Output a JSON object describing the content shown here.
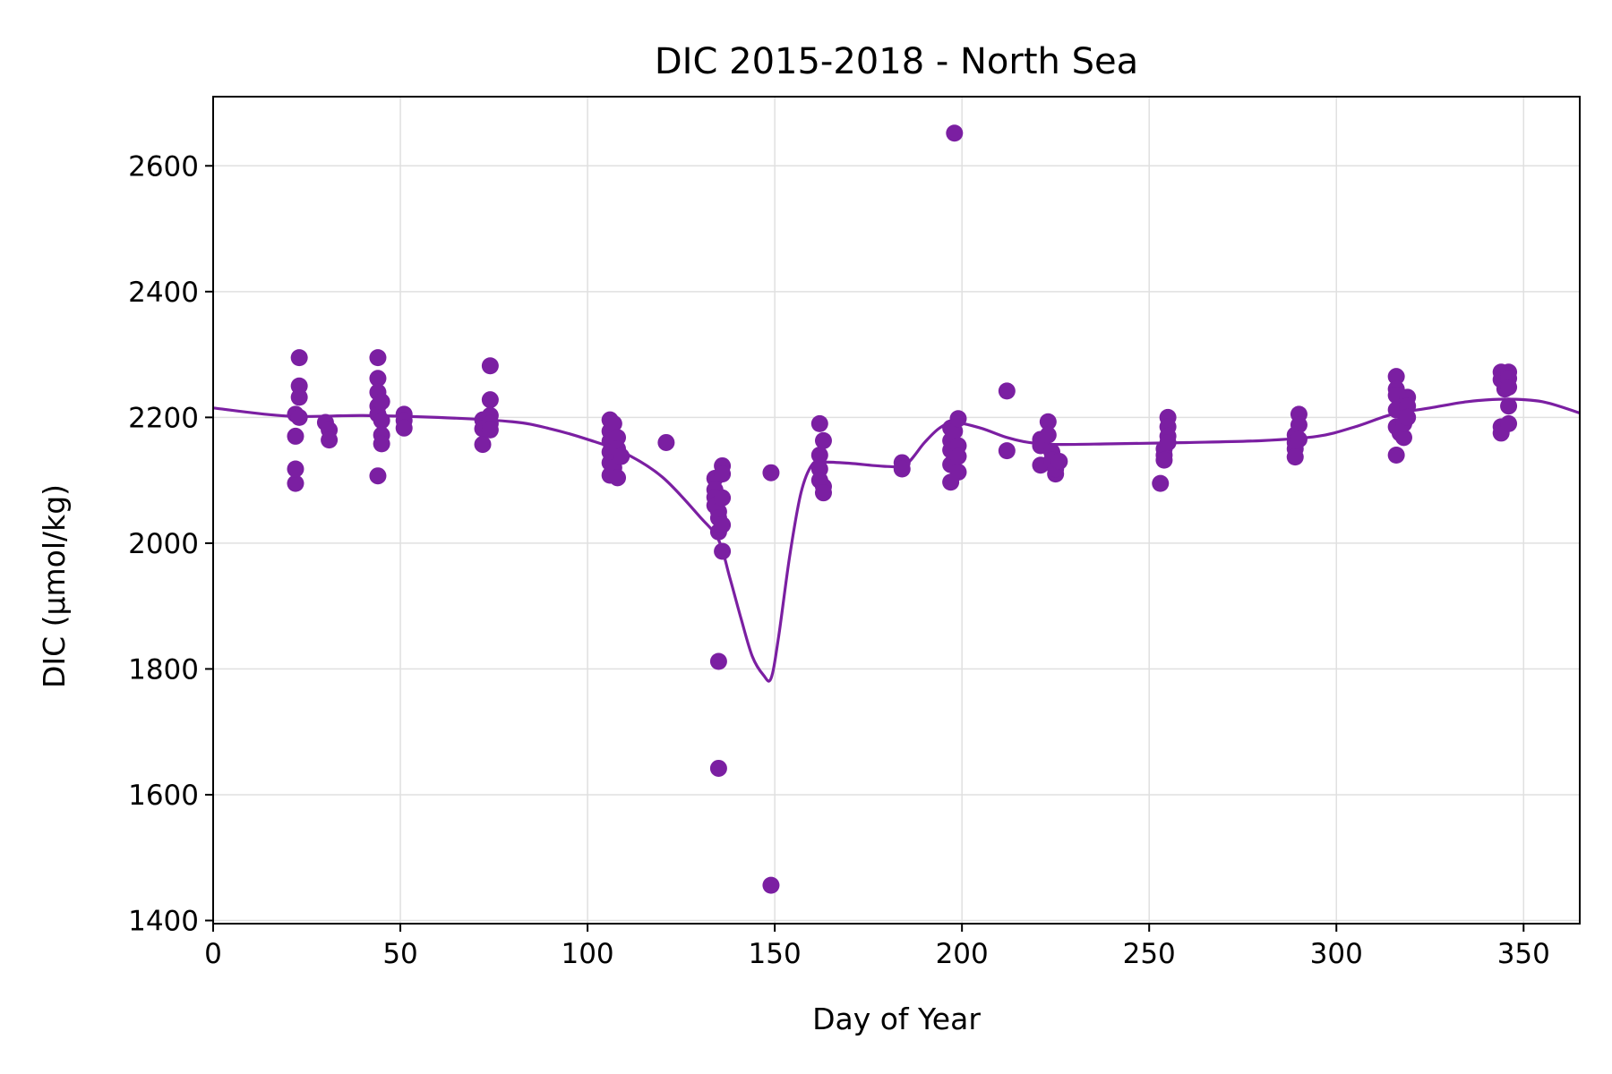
{
  "chart_data": {
    "type": "scatter",
    "title": "DIC 2015-2018 - North Sea",
    "xlabel": "Day of Year",
    "ylabel": "DIC (µmol/kg)",
    "xlim": [
      0,
      365
    ],
    "ylim": [
      1395,
      2710
    ],
    "xticks": [
      0,
      50,
      100,
      150,
      200,
      250,
      300,
      350
    ],
    "yticks": [
      1400,
      1600,
      1800,
      2000,
      2200,
      2400,
      2600
    ],
    "grid": true,
    "legend": "none",
    "colors": {
      "series": "#7b1fa2",
      "grid": "#e0e0e0",
      "axis": "#000000"
    },
    "series": [
      {
        "kind": "points",
        "points": [
          [
            22,
            2095
          ],
          [
            22,
            2118
          ],
          [
            22,
            2170
          ],
          [
            22,
            2205
          ],
          [
            23,
            2295
          ],
          [
            23,
            2250
          ],
          [
            23,
            2232
          ],
          [
            23,
            2200
          ],
          [
            30,
            2192
          ],
          [
            31,
            2180
          ],
          [
            31,
            2164
          ],
          [
            44,
            2295
          ],
          [
            44,
            2262
          ],
          [
            44,
            2240
          ],
          [
            44,
            2218
          ],
          [
            44,
            2205
          ],
          [
            44,
            2107
          ],
          [
            45,
            2195
          ],
          [
            45,
            2172
          ],
          [
            45,
            2158
          ],
          [
            45,
            2225
          ],
          [
            51,
            2205
          ],
          [
            51,
            2195
          ],
          [
            51,
            2183
          ],
          [
            72,
            2196
          ],
          [
            72,
            2182
          ],
          [
            72,
            2157
          ],
          [
            74,
            2282
          ],
          [
            74,
            2228
          ],
          [
            74,
            2203
          ],
          [
            74,
            2190
          ],
          [
            74,
            2180
          ],
          [
            106,
            2196
          ],
          [
            106,
            2178
          ],
          [
            106,
            2162
          ],
          [
            106,
            2145
          ],
          [
            106,
            2128
          ],
          [
            106,
            2108
          ],
          [
            107,
            2190
          ],
          [
            107,
            2120
          ],
          [
            108,
            2168
          ],
          [
            108,
            2150
          ],
          [
            108,
            2104
          ],
          [
            109,
            2138
          ],
          [
            121,
            2160
          ],
          [
            134,
            2103
          ],
          [
            134,
            2085
          ],
          [
            134,
            2073
          ],
          [
            134,
            2060
          ],
          [
            135,
            2050
          ],
          [
            135,
            2040
          ],
          [
            135,
            2018
          ],
          [
            135,
            1812
          ],
          [
            135,
            1642
          ],
          [
            136,
            2123
          ],
          [
            136,
            2110
          ],
          [
            136,
            2072
          ],
          [
            136,
            2029
          ],
          [
            136,
            1987
          ],
          [
            149,
            2112
          ],
          [
            149,
            1456
          ],
          [
            162,
            2190
          ],
          [
            162,
            2140
          ],
          [
            162,
            2118
          ],
          [
            162,
            2100
          ],
          [
            163,
            2163
          ],
          [
            163,
            2090
          ],
          [
            163,
            2080
          ],
          [
            184,
            2128
          ],
          [
            184,
            2118
          ],
          [
            197,
            2183
          ],
          [
            197,
            2163
          ],
          [
            197,
            2148
          ],
          [
            197,
            2125
          ],
          [
            197,
            2097
          ],
          [
            198,
            2652
          ],
          [
            198,
            2178
          ],
          [
            199,
            2198
          ],
          [
            199,
            2155
          ],
          [
            199,
            2138
          ],
          [
            199,
            2113
          ],
          [
            212,
            2242
          ],
          [
            212,
            2147
          ],
          [
            221,
            2165
          ],
          [
            221,
            2155
          ],
          [
            221,
            2124
          ],
          [
            223,
            2193
          ],
          [
            223,
            2172
          ],
          [
            224,
            2145
          ],
          [
            224,
            2132
          ],
          [
            225,
            2110
          ],
          [
            225,
            2118
          ],
          [
            226,
            2130
          ],
          [
            253,
            2095
          ],
          [
            254,
            2150
          ],
          [
            254,
            2140
          ],
          [
            254,
            2132
          ],
          [
            255,
            2200
          ],
          [
            255,
            2185
          ],
          [
            255,
            2170
          ],
          [
            255,
            2160
          ],
          [
            289,
            2172
          ],
          [
            289,
            2160
          ],
          [
            289,
            2150
          ],
          [
            289,
            2137
          ],
          [
            290,
            2205
          ],
          [
            290,
            2188
          ],
          [
            290,
            2165
          ],
          [
            316,
            2265
          ],
          [
            316,
            2245
          ],
          [
            316,
            2235
          ],
          [
            316,
            2212
          ],
          [
            316,
            2185
          ],
          [
            316,
            2140
          ],
          [
            317,
            2175
          ],
          [
            318,
            2168
          ],
          [
            318,
            2190
          ],
          [
            319,
            2232
          ],
          [
            319,
            2218
          ],
          [
            319,
            2200
          ],
          [
            344,
            2272
          ],
          [
            344,
            2260
          ],
          [
            344,
            2185
          ],
          [
            344,
            2175
          ],
          [
            345,
            2255
          ],
          [
            345,
            2245
          ],
          [
            346,
            2272
          ],
          [
            346,
            2262
          ],
          [
            346,
            2248
          ],
          [
            346,
            2218
          ],
          [
            346,
            2190
          ]
        ]
      },
      {
        "kind": "fitted_line",
        "x": [
          0,
          20,
          40,
          60,
          80,
          90,
          100,
          110,
          120,
          130,
          135,
          138,
          141,
          144,
          147,
          149,
          151,
          154,
          157,
          160,
          163,
          170,
          180,
          185,
          190,
          194,
          198,
          205,
          212,
          218,
          225,
          240,
          260,
          280,
          295,
          305,
          315,
          325,
          335,
          345,
          355,
          365
        ],
        "y": [
          2215,
          2202,
          2203,
          2200,
          2193,
          2182,
          2165,
          2143,
          2105,
          2042,
          2005,
          1945,
          1880,
          1820,
          1790,
          1785,
          1850,
          1980,
          2080,
          2125,
          2129,
          2127,
          2122,
          2125,
          2160,
          2183,
          2192,
          2183,
          2168,
          2160,
          2157,
          2158,
          2160,
          2163,
          2170,
          2185,
          2205,
          2215,
          2225,
          2229,
          2225,
          2207
        ]
      }
    ]
  }
}
